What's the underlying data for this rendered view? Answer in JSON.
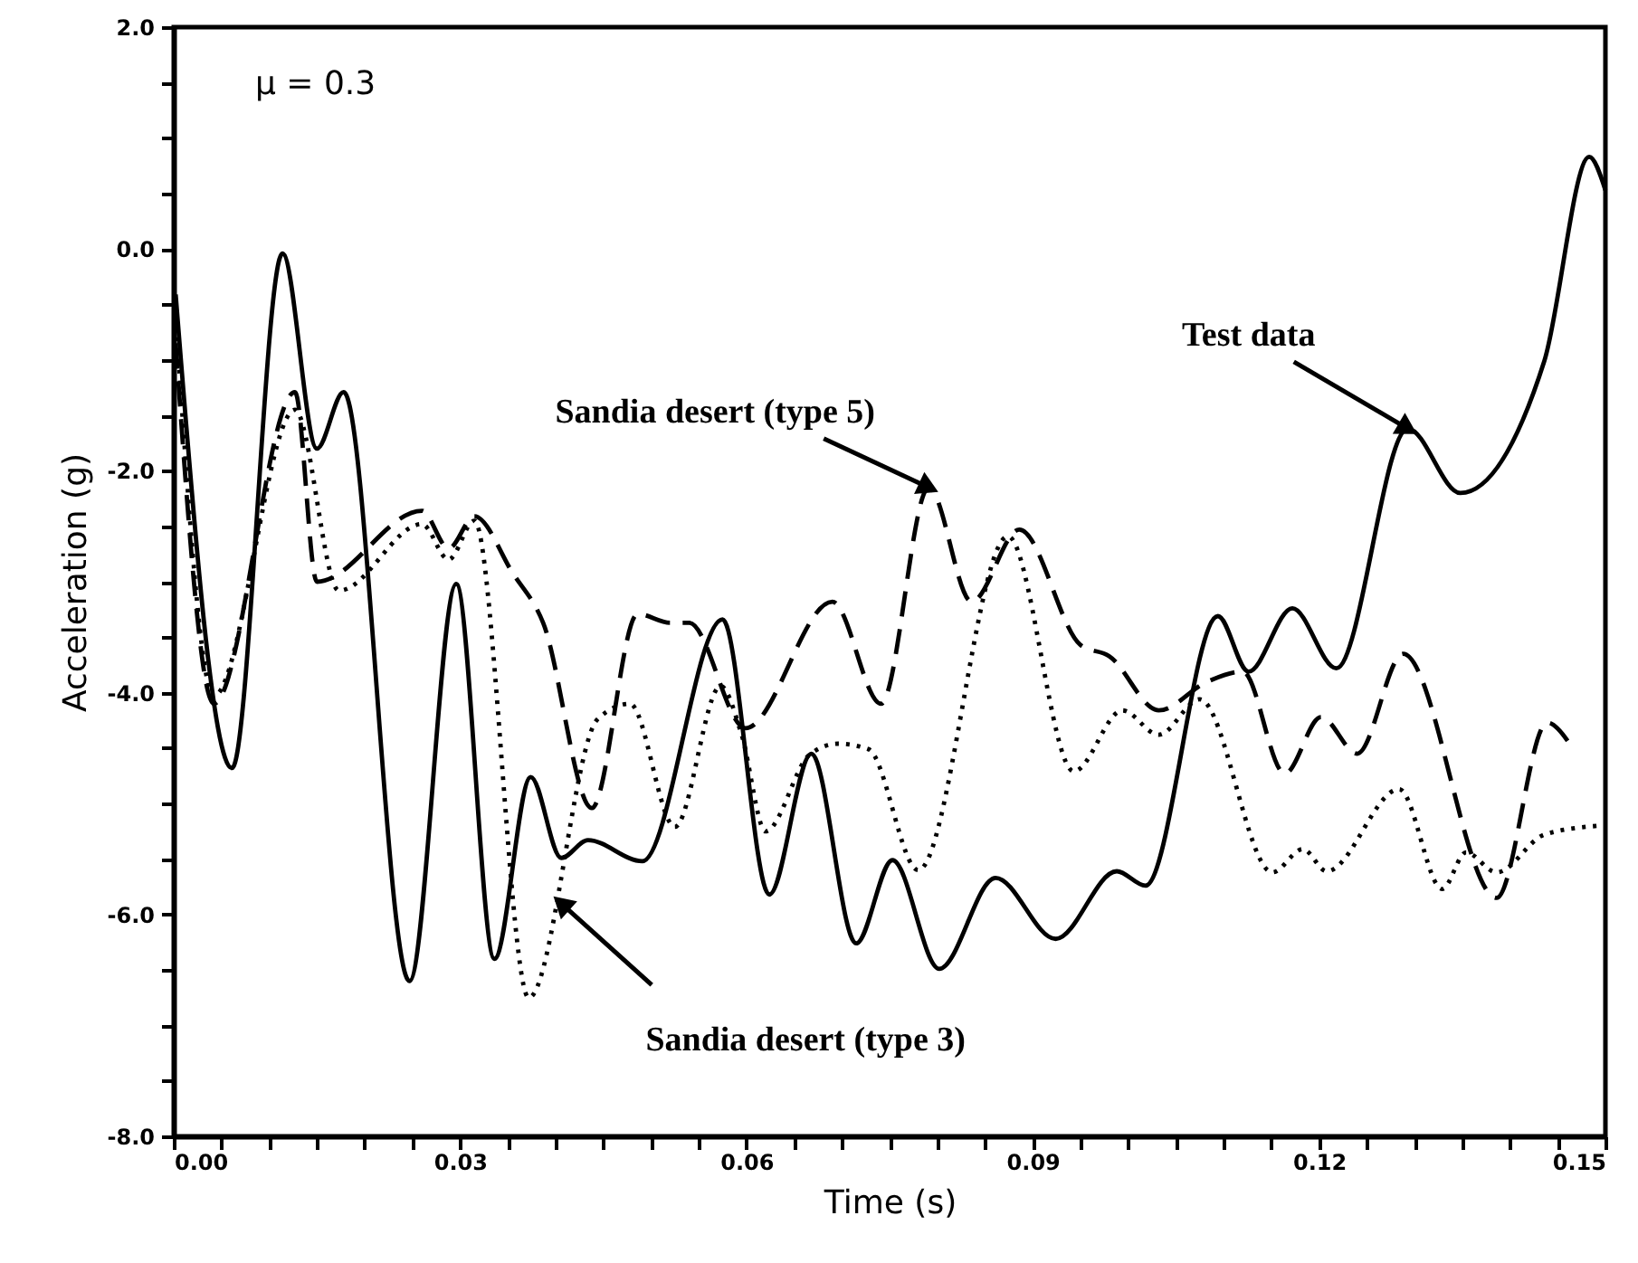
{
  "chart_data": {
    "type": "line",
    "xlabel": "Time (s)",
    "ylabel": "Acceleration (g)",
    "xlim": [
      0,
      0.15
    ],
    "ylim": [
      -8,
      2
    ],
    "xticks": [
      {
        "value": 0,
        "label": "0.00"
      },
      {
        "value": 0.005,
        "label": null
      },
      {
        "value": 0.01,
        "label": null
      },
      {
        "value": 0.015,
        "label": null
      },
      {
        "value": 0.02,
        "label": null
      },
      {
        "value": 0.025,
        "label": null
      },
      {
        "value": 0.03,
        "label": "0.03"
      },
      {
        "value": 0.035,
        "label": null
      },
      {
        "value": 0.04,
        "label": null
      },
      {
        "value": 0.045,
        "label": null
      },
      {
        "value": 0.05,
        "label": null
      },
      {
        "value": 0.055,
        "label": null
      },
      {
        "value": 0.06,
        "label": "0.06"
      },
      {
        "value": 0.065,
        "label": null
      },
      {
        "value": 0.07,
        "label": null
      },
      {
        "value": 0.075,
        "label": null
      },
      {
        "value": 0.08,
        "label": null
      },
      {
        "value": 0.085,
        "label": null
      },
      {
        "value": 0.09,
        "label": "0.09"
      },
      {
        "value": 0.095,
        "label": null
      },
      {
        "value": 0.1,
        "label": null
      },
      {
        "value": 0.105,
        "label": null
      },
      {
        "value": 0.11,
        "label": null
      },
      {
        "value": 0.115,
        "label": null
      },
      {
        "value": 0.12,
        "label": "0.12"
      },
      {
        "value": 0.125,
        "label": null
      },
      {
        "value": 0.13,
        "label": null
      },
      {
        "value": 0.135,
        "label": null
      },
      {
        "value": 0.14,
        "label": null
      },
      {
        "value": 0.145,
        "label": null
      },
      {
        "value": 0.15,
        "label": "0.15"
      }
    ],
    "yticks": [
      {
        "value": -8,
        "label": "-8.0"
      },
      {
        "value": -7.5,
        "label": null
      },
      {
        "value": -7,
        "label": null
      },
      {
        "value": -6.5,
        "label": null
      },
      {
        "value": -6,
        "label": "-6.0"
      },
      {
        "value": -5.5,
        "label": null
      },
      {
        "value": -5,
        "label": null
      },
      {
        "value": -4.5,
        "label": null
      },
      {
        "value": -4,
        "label": "-4.0"
      },
      {
        "value": -3.5,
        "label": null
      },
      {
        "value": -3,
        "label": null
      },
      {
        "value": -2.5,
        "label": null
      },
      {
        "value": -2,
        "label": "-2.0"
      },
      {
        "value": -1.5,
        "label": null
      },
      {
        "value": -1,
        "label": null
      },
      {
        "value": -0.5,
        "label": null
      },
      {
        "value": 0,
        "label": "0.0"
      },
      {
        "value": 0.5,
        "label": null
      },
      {
        "value": 1,
        "label": null
      },
      {
        "value": 1.5,
        "label": null
      },
      {
        "value": 2,
        "label": "2.0"
      }
    ],
    "grid": false,
    "marker": "none",
    "series": [
      {
        "color": "#000000",
        "line_style": "solid",
        "x": [
          0.0002,
          0.0061,
          0.0114,
          0.015,
          0.0178,
          0.0247,
          0.0296,
          0.0336,
          0.0374,
          0.0406,
          0.0434,
          0.0491,
          0.0575,
          0.0624,
          0.0668,
          0.0715,
          0.0753,
          0.0802,
          0.0861,
          0.0924,
          0.0988,
          0.1018,
          0.1094,
          0.1126,
          0.1172,
          0.1218,
          0.1293,
          0.1348,
          0.1436,
          0.1483,
          0.15
        ],
        "values": [
          -0.41,
          -4.68,
          -0.04,
          -1.8,
          -1.29,
          -6.6,
          -3.02,
          -6.4,
          -4.76,
          -5.49,
          -5.33,
          -5.52,
          -3.34,
          -5.82,
          -4.55,
          -6.26,
          -5.51,
          -6.49,
          -5.67,
          -6.22,
          -5.61,
          -5.74,
          -3.31,
          -3.81,
          -3.24,
          -3.78,
          -1.62,
          -2.2,
          -1.01,
          0.83,
          0.53
        ]
      },
      {
        "color": "#000000",
        "line_style": "dashed",
        "x": [
          0.0002,
          0.0042,
          0.0127,
          0.015,
          0.026,
          0.0288,
          0.0315,
          0.0355,
          0.0387,
          0.0438,
          0.0486,
          0.052,
          0.054,
          0.0599,
          0.069,
          0.0741,
          0.0791,
          0.0836,
          0.0886,
          0.095,
          0.098,
          0.1032,
          0.1083,
          0.112,
          0.1164,
          0.1202,
          0.124,
          0.1288,
          0.1386,
          0.1439,
          0.1464
        ],
        "values": [
          -0.85,
          -4.1,
          -1.29,
          -3.0,
          -2.36,
          -2.7,
          -2.41,
          -2.92,
          -3.37,
          -5.04,
          -3.29,
          -3.37,
          -3.37,
          -4.32,
          -3.18,
          -4.1,
          -2.15,
          -3.18,
          -2.53,
          -3.57,
          -3.67,
          -4.16,
          -3.9,
          -3.81,
          -4.73,
          -4.22,
          -4.55,
          -3.65,
          -5.85,
          -4.27,
          -4.48
        ]
      },
      {
        "color": "#000000",
        "line_style": "dotted",
        "x": [
          0.0002,
          0.0042,
          0.0127,
          0.0173,
          0.026,
          0.0288,
          0.0315,
          0.0372,
          0.0444,
          0.0478,
          0.0525,
          0.0573,
          0.0595,
          0.062,
          0.0666,
          0.0696,
          0.0728,
          0.078,
          0.0874,
          0.0943,
          0.0994,
          0.1032,
          0.1075,
          0.1151,
          0.1183,
          0.1208,
          0.1284,
          0.1329,
          0.1354,
          0.1386,
          0.1436,
          0.1493
        ],
        "values": [
          -0.6,
          -4.03,
          -1.45,
          -3.08,
          -2.48,
          -2.8,
          -2.45,
          -6.75,
          -4.24,
          -4.1,
          -5.21,
          -3.94,
          -4.38,
          -5.25,
          -4.56,
          -4.46,
          -4.51,
          -5.6,
          -2.59,
          -4.71,
          -4.16,
          -4.38,
          -4.06,
          -5.62,
          -5.41,
          -5.61,
          -4.87,
          -5.77,
          -5.44,
          -5.62,
          -5.28,
          -5.2
        ]
      }
    ],
    "annotations": [
      "μ = 0.3",
      {
        "text": "Test data",
        "x": 0.1293,
        "y": -1.62
      },
      {
        "text": "Sandia desert (type 5)",
        "x": 0.0791,
        "y": -2.15
      },
      {
        "text": "Sandia desert (type 3)",
        "x": 0.0406,
        "y": -5.9
      }
    ]
  }
}
